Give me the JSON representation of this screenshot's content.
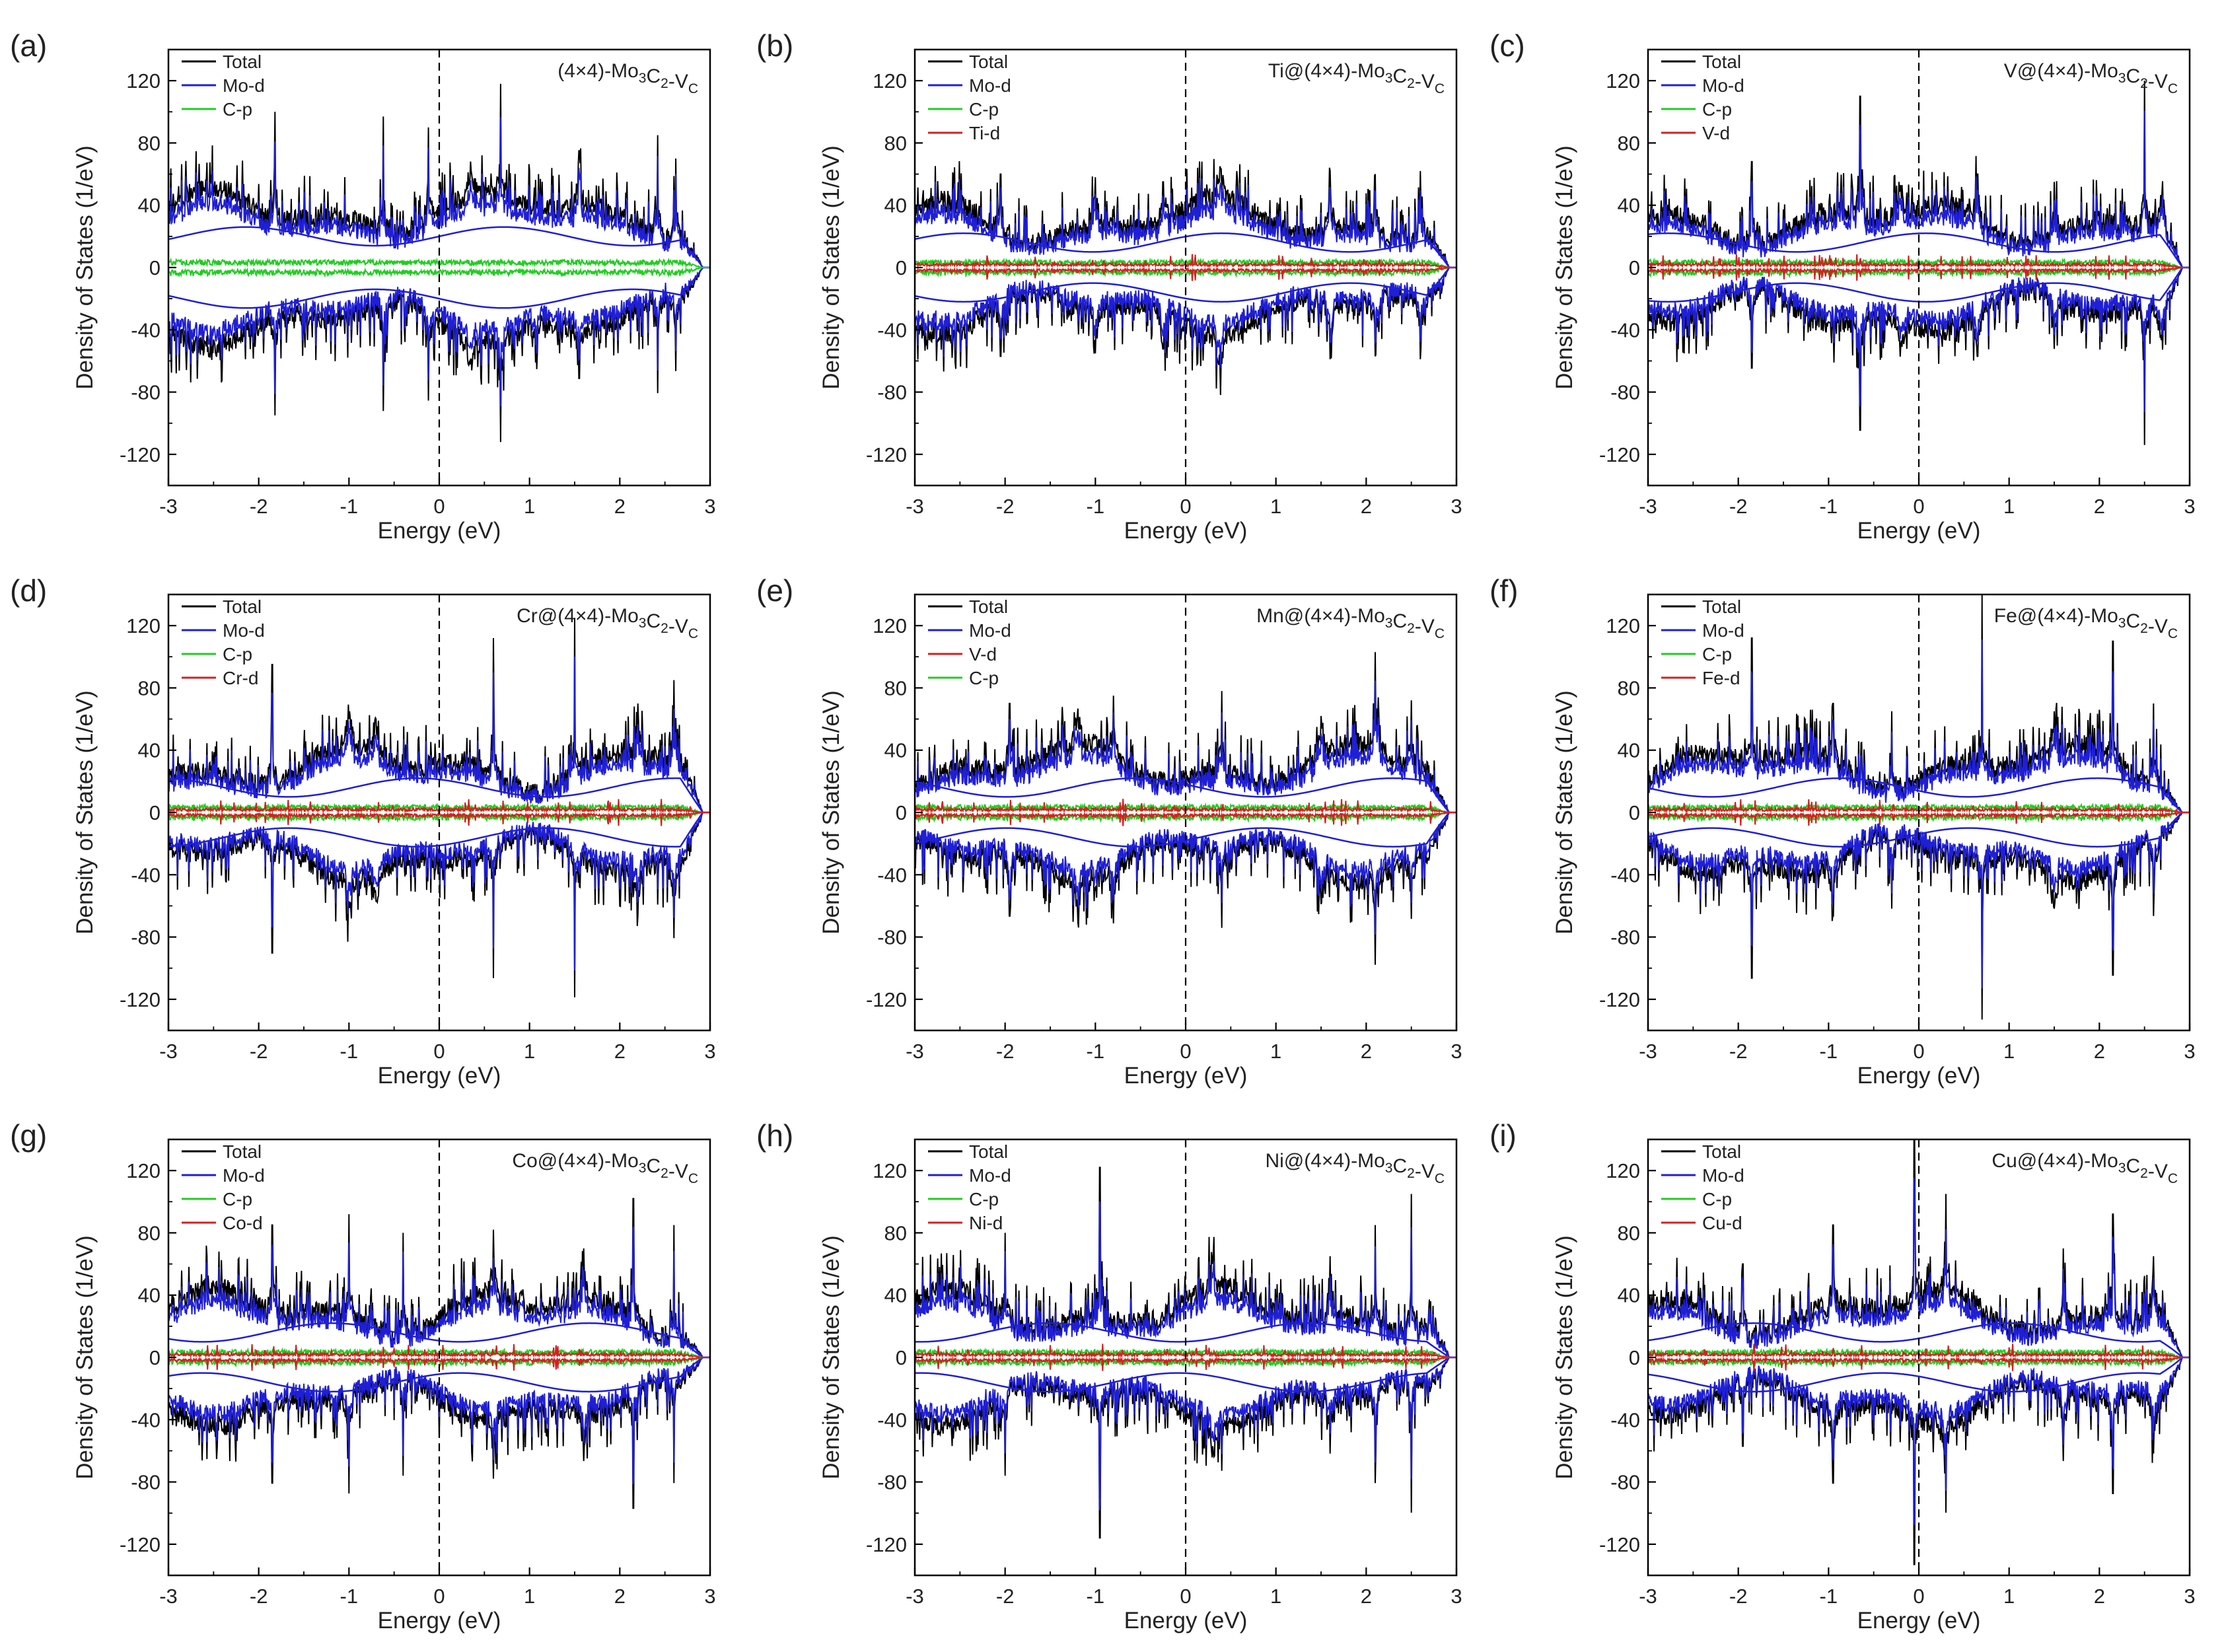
{
  "figure": {
    "xlabel": "Energy (eV)",
    "ylabel": "Density of States (1/eV)",
    "xticks": [
      "-3",
      "-2",
      "-1",
      "0",
      "1",
      "2",
      "3"
    ],
    "yticks": [
      "120",
      "80",
      "40",
      "0",
      "-40",
      "-80",
      "-120"
    ],
    "colors": {
      "Total": "#000000",
      "Mo-d": "#1f1fd6",
      "C-p": "#22cc22",
      "dopant": "#d42020"
    }
  },
  "chart_data": [
    {
      "panel": "(a)",
      "type": "line",
      "title": "(4×4)-Mo3C2-VC",
      "xlim": [
        -3,
        3
      ],
      "ylim": [
        -140,
        140
      ],
      "legend": [
        "Total",
        "Mo-d",
        "C-p"
      ],
      "fermi_level": 0,
      "peaks": [
        [
          -1.82,
          100
        ],
        [
          -0.62,
          97
        ],
        [
          -0.12,
          90
        ],
        [
          0.68,
          118
        ],
        [
          0.35,
          62
        ],
        [
          1.55,
          75
        ],
        [
          2.42,
          85
        ],
        [
          2.62,
          70
        ]
      ],
      "envelope_total": 28,
      "envelope_mo": 20
    },
    {
      "panel": "(b)",
      "type": "line",
      "title": "Ti@(4×4)-Mo3C2-VC",
      "xlim": [
        -3,
        3
      ],
      "ylim": [
        -140,
        140
      ],
      "legend": [
        "Total",
        "Mo-d",
        "C-p",
        "Ti-d"
      ],
      "fermi_level": 0,
      "peaks": [
        [
          -2.05,
          60
        ],
        [
          -1.0,
          58
        ],
        [
          -0.25,
          55
        ],
        [
          0.38,
          65
        ],
        [
          1.6,
          62
        ],
        [
          2.1,
          60
        ],
        [
          2.6,
          62
        ]
      ],
      "envelope_total": 22,
      "envelope_mo": 16
    },
    {
      "panel": "(c)",
      "type": "line",
      "title": "V@(4×4)-Mo3C2-VC",
      "xlim": [
        -3,
        3
      ],
      "ylim": [
        -140,
        140
      ],
      "legend": [
        "Total",
        "Mo-d",
        "C-p",
        "V-d"
      ],
      "fermi_level": 0,
      "peaks": [
        [
          -1.85,
          68
        ],
        [
          -0.65,
          110
        ],
        [
          -0.2,
          52
        ],
        [
          0.65,
          60
        ],
        [
          1.5,
          55
        ],
        [
          2.5,
          120
        ],
        [
          2.7,
          60
        ]
      ],
      "envelope_total": 22,
      "envelope_mo": 16
    },
    {
      "panel": "(d)",
      "type": "line",
      "title": "Cr@(4×4)-Mo3C2-VC",
      "xlim": [
        -3,
        3
      ],
      "ylim": [
        -140,
        140
      ],
      "legend": [
        "Total",
        "Mo-d",
        "C-p",
        "Cr-d"
      ],
      "fermi_level": 0,
      "peaks": [
        [
          -1.85,
          95
        ],
        [
          -1.0,
          60
        ],
        [
          -0.7,
          60
        ],
        [
          0.6,
          112
        ],
        [
          1.5,
          125
        ],
        [
          2.2,
          70
        ],
        [
          2.6,
          85
        ]
      ],
      "envelope_total": 22,
      "envelope_mo": 16
    },
    {
      "panel": "(e)",
      "type": "line",
      "title": "Mn@(4×4)-Mo3C2-VC",
      "xlim": [
        -3,
        3
      ],
      "ylim": [
        -140,
        140
      ],
      "legend": [
        "Total",
        "Mo-d",
        "V-d",
        "C-p"
      ],
      "fermi_level": 0,
      "peaks": [
        [
          -1.95,
          70
        ],
        [
          -1.2,
          62
        ],
        [
          -0.8,
          75
        ],
        [
          0.4,
          78
        ],
        [
          1.5,
          62
        ],
        [
          2.1,
          103
        ],
        [
          2.5,
          72
        ]
      ],
      "envelope_total": 22,
      "envelope_mo": 16
    },
    {
      "panel": "(f)",
      "type": "line",
      "title": "Fe@(4×4)-Mo3C2-VC",
      "xlim": [
        -3,
        3
      ],
      "ylim": [
        -140,
        140
      ],
      "legend": [
        "Total",
        "Mo-d",
        "C-p",
        "Fe-d"
      ],
      "fermi_level": 0,
      "peaks": [
        [
          -1.85,
          112
        ],
        [
          -0.95,
          70
        ],
        [
          -0.3,
          65
        ],
        [
          0.7,
          140
        ],
        [
          1.5,
          65
        ],
        [
          2.15,
          110
        ],
        [
          2.6,
          70
        ]
      ],
      "envelope_total": 22,
      "envelope_mo": 16
    },
    {
      "panel": "(g)",
      "type": "line",
      "title": "Co@(4×4)-Mo3C2-VC",
      "xlim": [
        -3,
        3
      ],
      "ylim": [
        -140,
        140
      ],
      "legend": [
        "Total",
        "Mo-d",
        "C-p",
        "Co-d"
      ],
      "fermi_level": 0,
      "peaks": [
        [
          -1.85,
          85
        ],
        [
          -1.0,
          92
        ],
        [
          -0.4,
          80
        ],
        [
          0.6,
          82
        ],
        [
          1.6,
          70
        ],
        [
          2.15,
          102
        ],
        [
          2.6,
          85
        ]
      ],
      "envelope_total": 22,
      "envelope_mo": 16
    },
    {
      "panel": "(h)",
      "type": "line",
      "title": "Ni@(4×4)-Mo3C2-VC",
      "xlim": [
        -3,
        3
      ],
      "ylim": [
        -140,
        140
      ],
      "legend": [
        "Total",
        "Mo-d",
        "C-p",
        "Ni-d"
      ],
      "fermi_level": 0,
      "peaks": [
        [
          -2.0,
          80
        ],
        [
          -0.95,
          122
        ],
        [
          0.3,
          60
        ],
        [
          1.6,
          65
        ],
        [
          2.1,
          85
        ],
        [
          2.5,
          105
        ]
      ],
      "envelope_total": 22,
      "envelope_mo": 16
    },
    {
      "panel": "(i)",
      "type": "line",
      "title": "Cu@(4×4)-Mo3C2-VC",
      "xlim": [
        -3,
        3
      ],
      "ylim": [
        -140,
        140
      ],
      "legend": [
        "Total",
        "Mo-d",
        "C-p",
        "Cu-d"
      ],
      "fermi_level": 0,
      "peaks": [
        [
          -1.95,
          60
        ],
        [
          -0.95,
          85
        ],
        [
          -0.05,
          140
        ],
        [
          0.3,
          105
        ],
        [
          1.6,
          70
        ],
        [
          2.15,
          92
        ],
        [
          2.6,
          65
        ]
      ],
      "envelope_total": 22,
      "envelope_mo": 16
    }
  ]
}
